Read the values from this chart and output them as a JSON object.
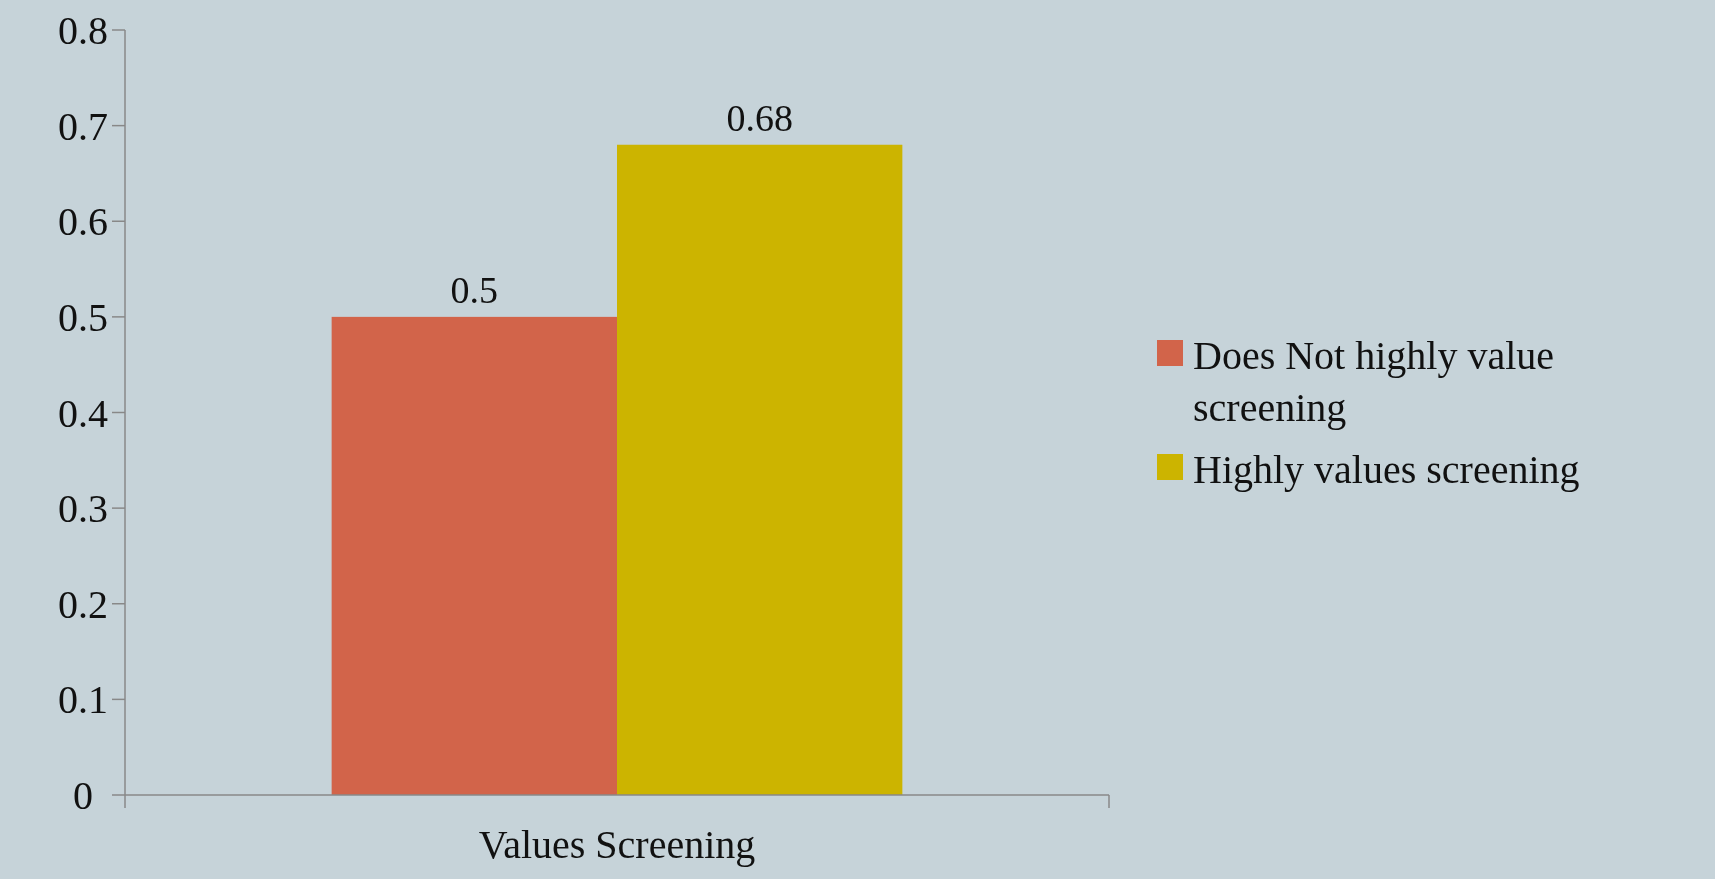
{
  "chart_data": {
    "type": "bar",
    "categories": [
      "Values Screening"
    ],
    "series": [
      {
        "name": "Does Not highly value screening",
        "color": "#d2644a",
        "values": [
          0.5
        ]
      },
      {
        "name": "Highly values screening",
        "color": "#ccb400",
        "values": [
          0.68
        ]
      }
    ],
    "ylim": [
      0,
      0.8
    ],
    "yticks": [
      0,
      0.1,
      0.2,
      0.3,
      0.4,
      0.5,
      0.6,
      0.7,
      0.8
    ],
    "data_labels": true,
    "legend": "right",
    "grid": false
  }
}
